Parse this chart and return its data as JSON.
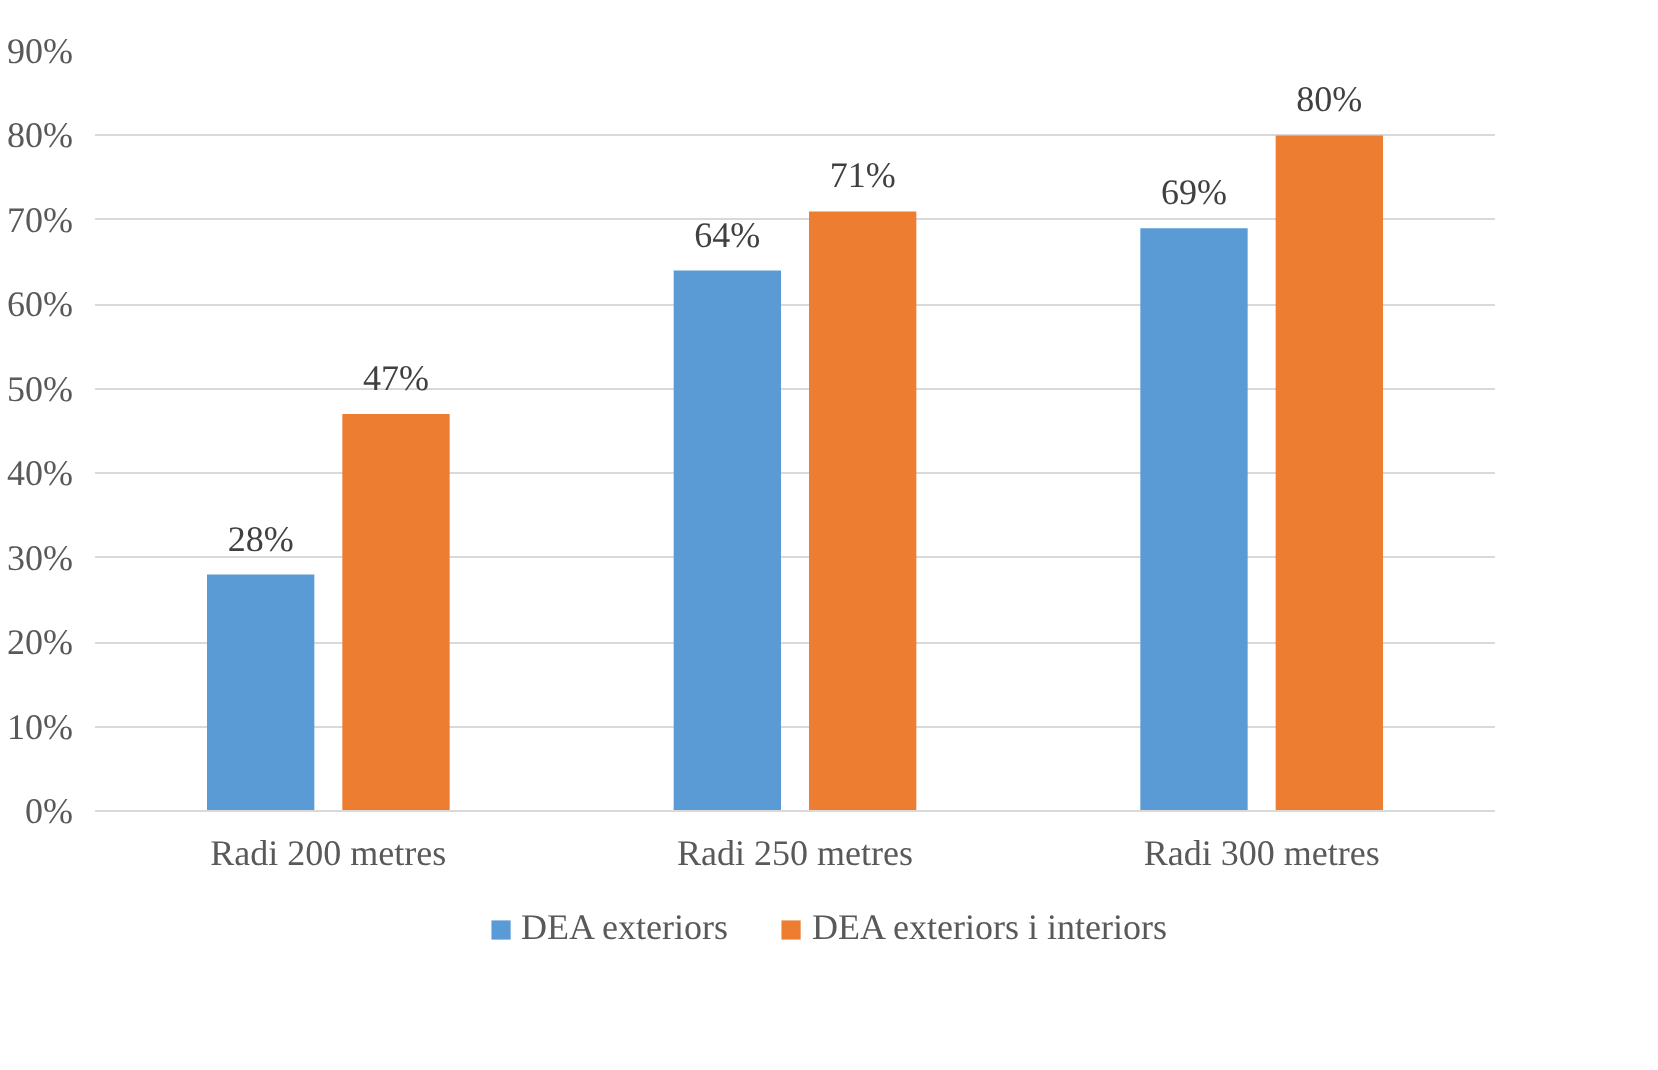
{
  "chart_data": {
    "type": "bar",
    "categories": [
      "Radi 200 metres",
      "Radi 250 metres",
      "Radi 300 metres"
    ],
    "series": [
      {
        "name": "DEA exteriors",
        "color": "#5b9bd5",
        "values": [
          28,
          64,
          69
        ],
        "value_labels": [
          "28%",
          "64%",
          "69%"
        ]
      },
      {
        "name": "DEA exteriors i interiors",
        "color": "#ed7d31",
        "values": [
          47,
          71,
          80
        ],
        "value_labels": [
          "47%",
          "71%",
          "80%"
        ]
      }
    ],
    "ylim": [
      0,
      90
    ],
    "yticks": [
      {
        "value": 0,
        "label": "0%"
      },
      {
        "value": 10,
        "label": "10%"
      },
      {
        "value": 20,
        "label": "20%"
      },
      {
        "value": 30,
        "label": "30%"
      },
      {
        "value": 40,
        "label": "40%"
      },
      {
        "value": 50,
        "label": "50%"
      },
      {
        "value": 60,
        "label": "60%"
      },
      {
        "value": 70,
        "label": "70%"
      },
      {
        "value": 80,
        "label": "80%"
      },
      {
        "value": 90,
        "label": "90%"
      }
    ],
    "grid": "y",
    "legend": "bottom"
  }
}
